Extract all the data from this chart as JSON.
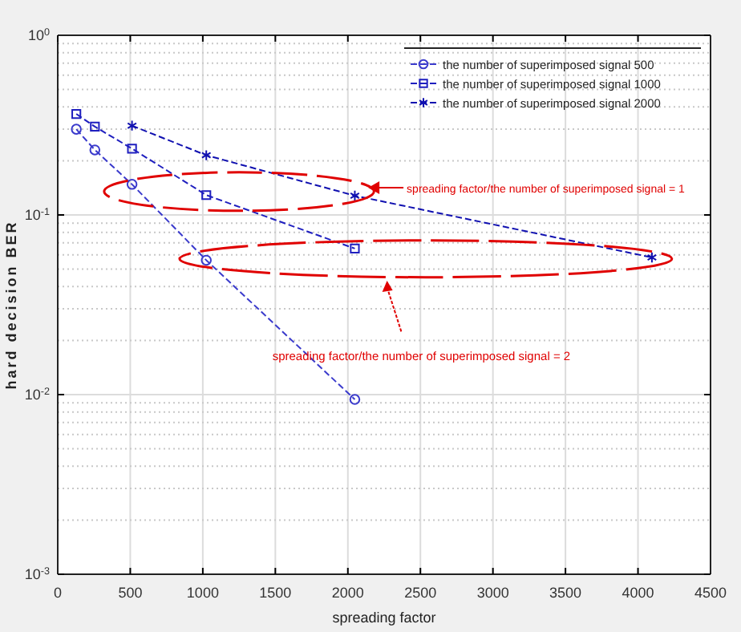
{
  "chart_data": {
    "type": "line",
    "xlabel": "spreading factor",
    "ylabel": "hard decision BER",
    "xlim": [
      0,
      4500
    ],
    "xticks": [
      0,
      500,
      1000,
      1500,
      2000,
      2500,
      3000,
      3500,
      4000,
      4500
    ],
    "ylim": [
      0.001,
      1
    ],
    "yticks": [
      {
        "value": 0.001,
        "label": "10$^{-3}$"
      },
      {
        "value": 0.01,
        "label": "10$^{-2}$"
      },
      {
        "value": 0.1,
        "label": "10$^{-1}$"
      },
      {
        "value": 1,
        "label": "10$^{0}$"
      }
    ],
    "log": "y",
    "grid": true,
    "legend": "top right",
    "line_style": "dashed",
    "series": [
      {
        "name": "the number of superimposed signal 500",
        "color": "#3a3acc",
        "marker": "circle",
        "x": [
          128,
          256,
          512,
          1024,
          2048
        ],
        "values": [
          0.3,
          0.23,
          0.148,
          0.056,
          0.0094
        ]
      },
      {
        "name": "the number of superimposed signal 1000",
        "color": "#1f1fbf",
        "marker": "square",
        "x": [
          128,
          256,
          512,
          1024,
          2048
        ],
        "values": [
          0.365,
          0.31,
          0.234,
          0.129,
          0.065
        ]
      },
      {
        "name": "the number of superimposed signal 2000",
        "color": "#1010b0",
        "marker": "cross",
        "x": [
          512,
          1024,
          2048,
          4096
        ],
        "values": [
          0.314,
          0.215,
          0.128,
          0.058
        ]
      }
    ],
    "annotations": [
      "spreading factor/the number of superimposed signal = 1",
      "spreading factor/the number of superimposed signal = 2"
    ]
  }
}
